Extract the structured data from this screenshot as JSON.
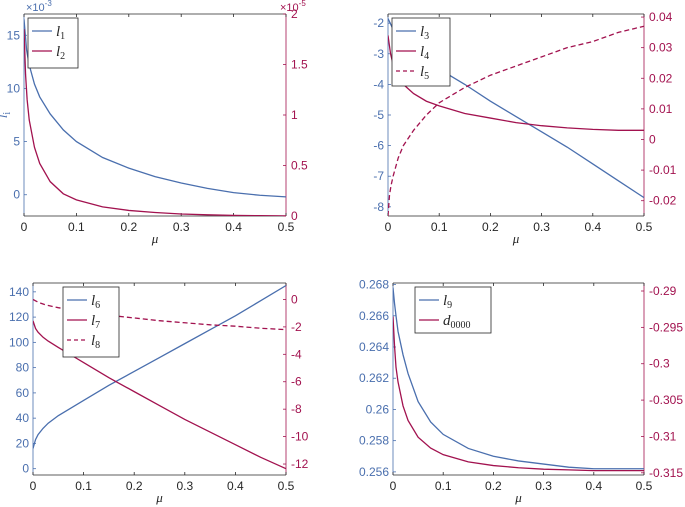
{
  "colors": {
    "blue": "#4a6fae",
    "red": "#a2124f",
    "axis": "#262626"
  },
  "chart_data": [
    {
      "type": "line",
      "panel": "top-left",
      "xlabel": "μ",
      "x_ticks": [
        "0",
        "0.1",
        "0.2",
        "0.3",
        "0.4",
        "0.5"
      ],
      "xlim": [
        0,
        0.5
      ],
      "left_axis": {
        "label": "l",
        "label_sub": "i",
        "exponent": "×10",
        "exponent_power": "-3",
        "ylim": [
          -2,
          17
        ],
        "ticks": [
          "0",
          "5",
          "10",
          "15"
        ],
        "tick_values": [
          0,
          5,
          10,
          15
        ],
        "color": "blue"
      },
      "right_axis": {
        "exponent": "×10",
        "exponent_power": "-5",
        "ylim": [
          0,
          2
        ],
        "ticks": [
          "0",
          "0.5",
          "1",
          "1.5",
          "2"
        ],
        "tick_values": [
          0,
          0.5,
          1,
          1.5,
          2
        ],
        "color": "red"
      },
      "legend_position": "top-left",
      "series": [
        {
          "name": "l",
          "sub": "1",
          "axis": "left",
          "color": "blue",
          "style": "solid",
          "x": [
            0,
            0.005,
            0.01,
            0.02,
            0.03,
            0.05,
            0.075,
            0.1,
            0.15,
            0.2,
            0.25,
            0.3,
            0.35,
            0.4,
            0.45,
            0.5
          ],
          "y": [
            16.5,
            13.6,
            12.2,
            10.4,
            9.2,
            7.6,
            6.1,
            5.0,
            3.5,
            2.5,
            1.7,
            1.1,
            0.6,
            0.2,
            -0.05,
            -0.2
          ]
        },
        {
          "name": "l",
          "sub": "2",
          "axis": "right",
          "color": "red",
          "style": "solid",
          "x": [
            0,
            0.003,
            0.006,
            0.01,
            0.02,
            0.03,
            0.05,
            0.075,
            0.1,
            0.15,
            0.2,
            0.25,
            0.3,
            0.35,
            0.4,
            0.45,
            0.5
          ],
          "y": [
            1.85,
            1.4,
            1.15,
            0.95,
            0.68,
            0.52,
            0.34,
            0.22,
            0.16,
            0.09,
            0.055,
            0.035,
            0.02,
            0.012,
            0.006,
            0.003,
            0.001
          ]
        }
      ]
    },
    {
      "type": "line",
      "panel": "top-right",
      "xlabel": "μ",
      "x_ticks": [
        "0",
        "0.1",
        "0.2",
        "0.3",
        "0.4",
        "0.5"
      ],
      "xlim": [
        0,
        0.5
      ],
      "left_axis": {
        "ylim": [
          -8.3,
          -1.7
        ],
        "ticks": [
          "-2",
          "-3",
          "-4",
          "-5",
          "-6",
          "-7",
          "-8"
        ],
        "tick_values": [
          -2,
          -3,
          -4,
          -5,
          -6,
          -7,
          -8
        ],
        "color": "blue"
      },
      "right_axis": {
        "ylim": [
          -0.025,
          0.041
        ],
        "ticks": [
          "0.04",
          "0.03",
          "0.02",
          "0.01",
          "0",
          "-0.01",
          "-0.02"
        ],
        "tick_values": [
          0.04,
          0.03,
          0.02,
          0.01,
          0,
          -0.01,
          -0.02
        ],
        "color": "red"
      },
      "legend_position": "top-left",
      "series": [
        {
          "name": "l",
          "sub": "3",
          "axis": "left",
          "color": "blue",
          "style": "solid",
          "x": [
            0,
            0.01,
            0.025,
            0.05,
            0.1,
            0.15,
            0.2,
            0.25,
            0.3,
            0.35,
            0.4,
            0.45,
            0.5
          ],
          "y": [
            -1.85,
            -2.2,
            -2.55,
            -2.9,
            -3.5,
            -4.0,
            -4.55,
            -5.05,
            -5.55,
            -6.05,
            -6.6,
            -7.15,
            -7.7
          ]
        },
        {
          "name": "l",
          "sub": "4",
          "axis": "left",
          "color": "red",
          "style": "solid",
          "x": [
            0,
            0.005,
            0.01,
            0.02,
            0.03,
            0.05,
            0.075,
            0.1,
            0.15,
            0.2,
            0.25,
            0.3,
            0.35,
            0.4,
            0.45,
            0.5
          ],
          "y": [
            -2.4,
            -3.0,
            -3.35,
            -3.75,
            -4.0,
            -4.3,
            -4.55,
            -4.7,
            -4.95,
            -5.1,
            -5.25,
            -5.35,
            -5.42,
            -5.47,
            -5.5,
            -5.5
          ]
        },
        {
          "name": "l",
          "sub": "5",
          "axis": "right",
          "color": "red",
          "style": "dashed",
          "x": [
            0,
            0.003,
            0.006,
            0.01,
            0.02,
            0.03,
            0.05,
            0.075,
            0.1,
            0.15,
            0.2,
            0.25,
            0.3,
            0.35,
            0.4,
            0.45,
            0.5
          ],
          "y": [
            -0.025,
            -0.018,
            -0.015,
            -0.012,
            -0.006,
            -0.002,
            0.003,
            0.008,
            0.012,
            0.017,
            0.021,
            0.024,
            0.027,
            0.03,
            0.032,
            0.035,
            0.037
          ]
        }
      ]
    },
    {
      "type": "line",
      "panel": "bottom-left",
      "xlabel": "μ",
      "x_ticks": [
        "0",
        "0.1",
        "0.2",
        "0.3",
        "0.4",
        "0.5"
      ],
      "xlim": [
        0,
        0.5
      ],
      "left_axis": {
        "ylim": [
          -5,
          147
        ],
        "ticks": [
          "0",
          "20",
          "40",
          "60",
          "80",
          "100",
          "120",
          "140"
        ],
        "tick_values": [
          0,
          20,
          40,
          60,
          80,
          100,
          120,
          140
        ],
        "color": "blue"
      },
      "right_axis": {
        "ylim": [
          -12.8,
          1.2
        ],
        "ticks": [
          "0",
          "-2",
          "-4",
          "-6",
          "-8",
          "-10",
          "-12"
        ],
        "tick_values": [
          0,
          -2,
          -4,
          -6,
          -8,
          -10,
          -12
        ],
        "color": "red"
      },
      "legend_position": "top-center",
      "series": [
        {
          "name": "l",
          "sub": "6",
          "axis": "left",
          "color": "blue",
          "style": "solid",
          "x": [
            0,
            0.005,
            0.01,
            0.02,
            0.03,
            0.05,
            0.075,
            0.1,
            0.15,
            0.2,
            0.25,
            0.3,
            0.35,
            0.4,
            0.45,
            0.5
          ],
          "y": [
            16,
            23,
            27,
            32,
            36,
            42,
            48,
            54,
            66,
            77,
            88,
            99,
            110,
            121,
            133,
            145
          ]
        },
        {
          "name": "l",
          "sub": "7",
          "axis": "left",
          "color": "red",
          "style": "solid",
          "x": [
            0,
            0.005,
            0.01,
            0.02,
            0.03,
            0.05,
            0.075,
            0.1,
            0.15,
            0.2,
            0.25,
            0.3,
            0.35,
            0.4,
            0.45,
            0.5
          ],
          "y": [
            117,
            111,
            108,
            104,
            101,
            96,
            90,
            84,
            72,
            61,
            50,
            39,
            29,
            19,
            9,
            0
          ]
        },
        {
          "name": "l",
          "sub": "8",
          "axis": "right",
          "color": "red",
          "style": "dashed",
          "x": [
            0,
            0.01,
            0.025,
            0.05,
            0.1,
            0.15,
            0.2,
            0.25,
            0.3,
            0.35,
            0.4,
            0.45,
            0.5
          ],
          "y": [
            0.0,
            -0.2,
            -0.4,
            -0.6,
            -0.9,
            -1.15,
            -1.35,
            -1.55,
            -1.7,
            -1.85,
            -1.95,
            -2.1,
            -2.2
          ]
        }
      ]
    },
    {
      "type": "line",
      "panel": "bottom-right",
      "xlabel": "μ",
      "x_ticks": [
        "0",
        "0.1",
        "0.2",
        "0.3",
        "0.4",
        "0.5"
      ],
      "xlim": [
        0,
        0.5
      ],
      "left_axis": {
        "ylim": [
          0.2558,
          0.2681
        ],
        "ticks": [
          "0.268",
          "0.266",
          "0.264",
          "0.262",
          "0.26",
          "0.258",
          "0.256"
        ],
        "tick_values": [
          0.268,
          0.266,
          0.264,
          0.262,
          0.26,
          0.258,
          0.256
        ],
        "color": "blue"
      },
      "right_axis": {
        "ylim": [
          -0.3153,
          -0.2889
        ],
        "ticks": [
          "-0.29",
          "-0.295",
          "-0.3",
          "-0.305",
          "-0.31",
          "-0.315"
        ],
        "tick_values": [
          -0.29,
          -0.295,
          -0.3,
          -0.305,
          -0.31,
          -0.315
        ],
        "color": "red"
      },
      "legend_position": "top-center",
      "series": [
        {
          "name": "l",
          "sub": "9",
          "axis": "left",
          "color": "blue",
          "style": "solid",
          "x": [
            0,
            0.003,
            0.006,
            0.01,
            0.02,
            0.03,
            0.05,
            0.075,
            0.1,
            0.15,
            0.2,
            0.25,
            0.3,
            0.35,
            0.4,
            0.45,
            0.5
          ],
          "y": [
            0.2678,
            0.2668,
            0.266,
            0.265,
            0.2635,
            0.2623,
            0.2605,
            0.2592,
            0.2584,
            0.2575,
            0.257,
            0.2567,
            0.2565,
            0.2563,
            0.2562,
            0.2562,
            0.2562
          ]
        },
        {
          "name": "d",
          "sub": "0000",
          "axis": "right",
          "color": "red",
          "style": "solid",
          "x": [
            0,
            0.003,
            0.006,
            0.01,
            0.02,
            0.03,
            0.05,
            0.075,
            0.1,
            0.15,
            0.2,
            0.25,
            0.3,
            0.35,
            0.4,
            0.45,
            0.5
          ],
          "y": [
            -0.2935,
            -0.2975,
            -0.3005,
            -0.3025,
            -0.3058,
            -0.3078,
            -0.3101,
            -0.3116,
            -0.3125,
            -0.3135,
            -0.314,
            -0.3143,
            -0.3145,
            -0.3146,
            -0.3147,
            -0.3147,
            -0.3147
          ]
        }
      ]
    }
  ]
}
